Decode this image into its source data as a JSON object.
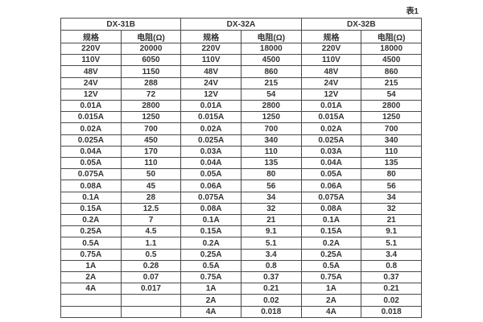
{
  "page": {
    "table_label": "表1"
  },
  "colors": {
    "border": "#4b4b4b",
    "text": "#333333",
    "bg": "#ffffff"
  },
  "table": {
    "sections": [
      {
        "name": "DX-31B",
        "col_headers": [
          "规格",
          "电阻(Ω)"
        ]
      },
      {
        "name": "DX-32A",
        "col_headers": [
          "规格",
          "电阻(Ω)"
        ]
      },
      {
        "name": "DX-32B",
        "col_headers": [
          "规格",
          "电阻(Ω)"
        ]
      }
    ],
    "rows": [
      [
        "220V",
        "20000",
        "220V",
        "18000",
        "220V",
        "18000"
      ],
      [
        "110V",
        "6050",
        "110V",
        "4500",
        "110V",
        "4500"
      ],
      [
        "48V",
        "1150",
        "48V",
        "860",
        "48V",
        "860"
      ],
      [
        "24V",
        "288",
        "24V",
        "215",
        "24V",
        "215"
      ],
      [
        "12V",
        "72",
        "12V",
        "54",
        "12V",
        "54"
      ],
      [
        "0.01A",
        "2800",
        "0.01A",
        "2800",
        "0.01A",
        "2800"
      ],
      [
        "0.015A",
        "1250",
        "0.015A",
        "1250",
        "0.015A",
        "1250"
      ],
      [
        "0.02A",
        "700",
        "0.02A",
        "700",
        "0.02A",
        "700"
      ],
      [
        "0.025A",
        "450",
        "0.025A",
        "340",
        "0.025A",
        "340"
      ],
      [
        "0.04A",
        "170",
        "0.03A",
        "110",
        "0.03A",
        "110"
      ],
      [
        "0.05A",
        "110",
        "0.04A",
        "135",
        "0.04A",
        "135"
      ],
      [
        "0.075A",
        "50",
        "0.05A",
        "80",
        "0.05A",
        "80"
      ],
      [
        "0.08A",
        "45",
        "0.06A",
        "56",
        "0.06A",
        "56"
      ],
      [
        "0.1A",
        "28",
        "0.075A",
        "34",
        "0.075A",
        "34"
      ],
      [
        "0.15A",
        "12.5",
        "0.08A",
        "32",
        "0.08A",
        "32"
      ],
      [
        "0.2A",
        "7",
        "0.1A",
        "21",
        "0.1A",
        "21"
      ],
      [
        "0.25A",
        "4.5",
        "0.15A",
        "9.1",
        "0.15A",
        "9.1"
      ],
      [
        "0.5A",
        "1.1",
        "0.2A",
        "5.1",
        "0.2A",
        "5.1"
      ],
      [
        "0.75A",
        "0.5",
        "0.25A",
        "3.4",
        "0.25A",
        "3.4"
      ],
      [
        "1A",
        "0.28",
        "0.5A",
        "0.8",
        "0.5A",
        "0.8"
      ],
      [
        "2A",
        "0.07",
        "0.75A",
        "0.37",
        "0.75A",
        "0.37"
      ],
      [
        "4A",
        "0.017",
        "1A",
        "0.21",
        "1A",
        "0.21"
      ],
      [
        "",
        "",
        "2A",
        "0.02",
        "2A",
        "0.02"
      ],
      [
        "",
        "",
        "4A",
        "0.018",
        "4A",
        "0.018"
      ]
    ]
  }
}
